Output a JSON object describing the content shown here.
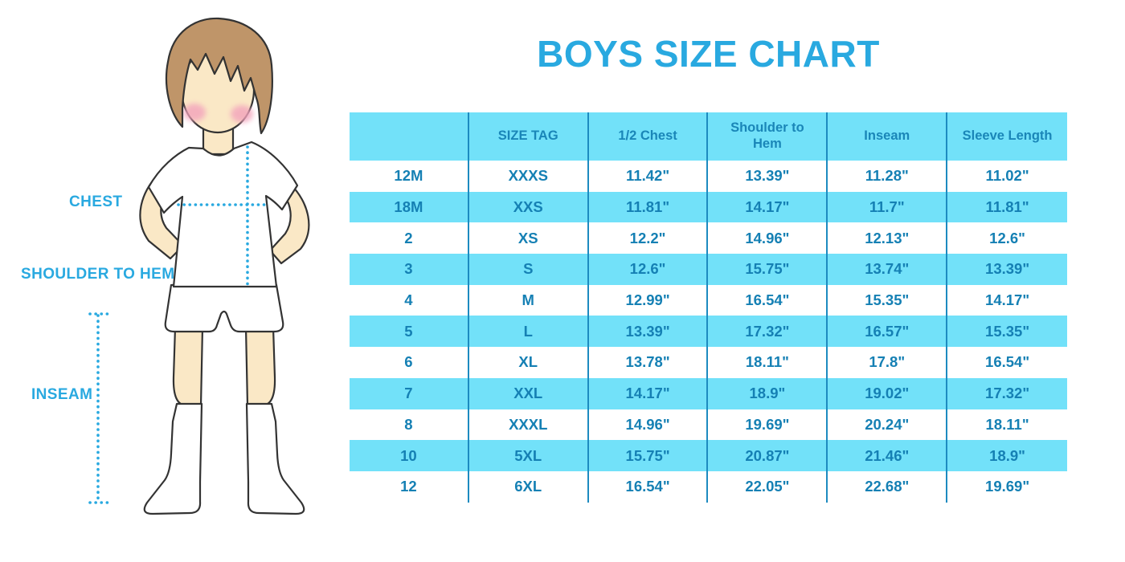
{
  "title": "BOYS SIZE CHART",
  "figure": {
    "description": "boy-body-measurement-illustration",
    "labels": {
      "chest": "CHEST",
      "shoulder_to_hem": "SHOULDER TO HEM",
      "inseam": "INSEAM"
    }
  },
  "chart_data": {
    "type": "table",
    "title": "BOYS SIZE CHART",
    "columns": [
      "",
      "SIZE TAG",
      "1/2 Chest",
      "Shoulder to Hem",
      "Inseam",
      "Sleeve Length"
    ],
    "rows": [
      [
        "12M",
        "XXXS",
        "11.42\"",
        "13.39\"",
        "11.28\"",
        "11.02\""
      ],
      [
        "18M",
        "XXS",
        "11.81\"",
        "14.17\"",
        "11.7\"",
        "11.81\""
      ],
      [
        "2",
        "XS",
        "12.2\"",
        "14.96\"",
        "12.13\"",
        "12.6\""
      ],
      [
        "3",
        "S",
        "12.6\"",
        "15.75\"",
        "13.74\"",
        "13.39\""
      ],
      [
        "4",
        "M",
        "12.99\"",
        "16.54\"",
        "15.35\"",
        "14.17\""
      ],
      [
        "5",
        "L",
        "13.39\"",
        "17.32\"",
        "16.57\"",
        "15.35\""
      ],
      [
        "6",
        "XL",
        "13.78\"",
        "18.11\"",
        "17.8\"",
        "16.54\""
      ],
      [
        "7",
        "XXL",
        "14.17\"",
        "18.9\"",
        "19.02\"",
        "17.32\""
      ],
      [
        "8",
        "XXXL",
        "14.96\"",
        "19.69\"",
        "20.24\"",
        "18.11\""
      ],
      [
        "10",
        "5XL",
        "15.75\"",
        "20.87\"",
        "21.46\"",
        "18.9\""
      ],
      [
        "12",
        "6XL",
        "16.54\"",
        "22.05\"",
        "22.68\"",
        "19.69\""
      ]
    ],
    "layout": {
      "striped_row_background_pattern": "alternating white / cyan starting white at first data row",
      "header_background": "cyan",
      "column_dividers": "vertical teal lines only, no horizontal borders"
    }
  },
  "colors": {
    "accent_blue": "#29a9e0",
    "stripe_cyan": "#72e1f9",
    "divider_teal": "#1d8bc0",
    "cell_text_blue": "#1580b4",
    "header_text_blue": "#1a86b8",
    "hair_brown": "#bf9569",
    "skin_cream": "#fae8c6",
    "cheek_pink": "#f3a3bc",
    "outline_dark": "#333333"
  }
}
